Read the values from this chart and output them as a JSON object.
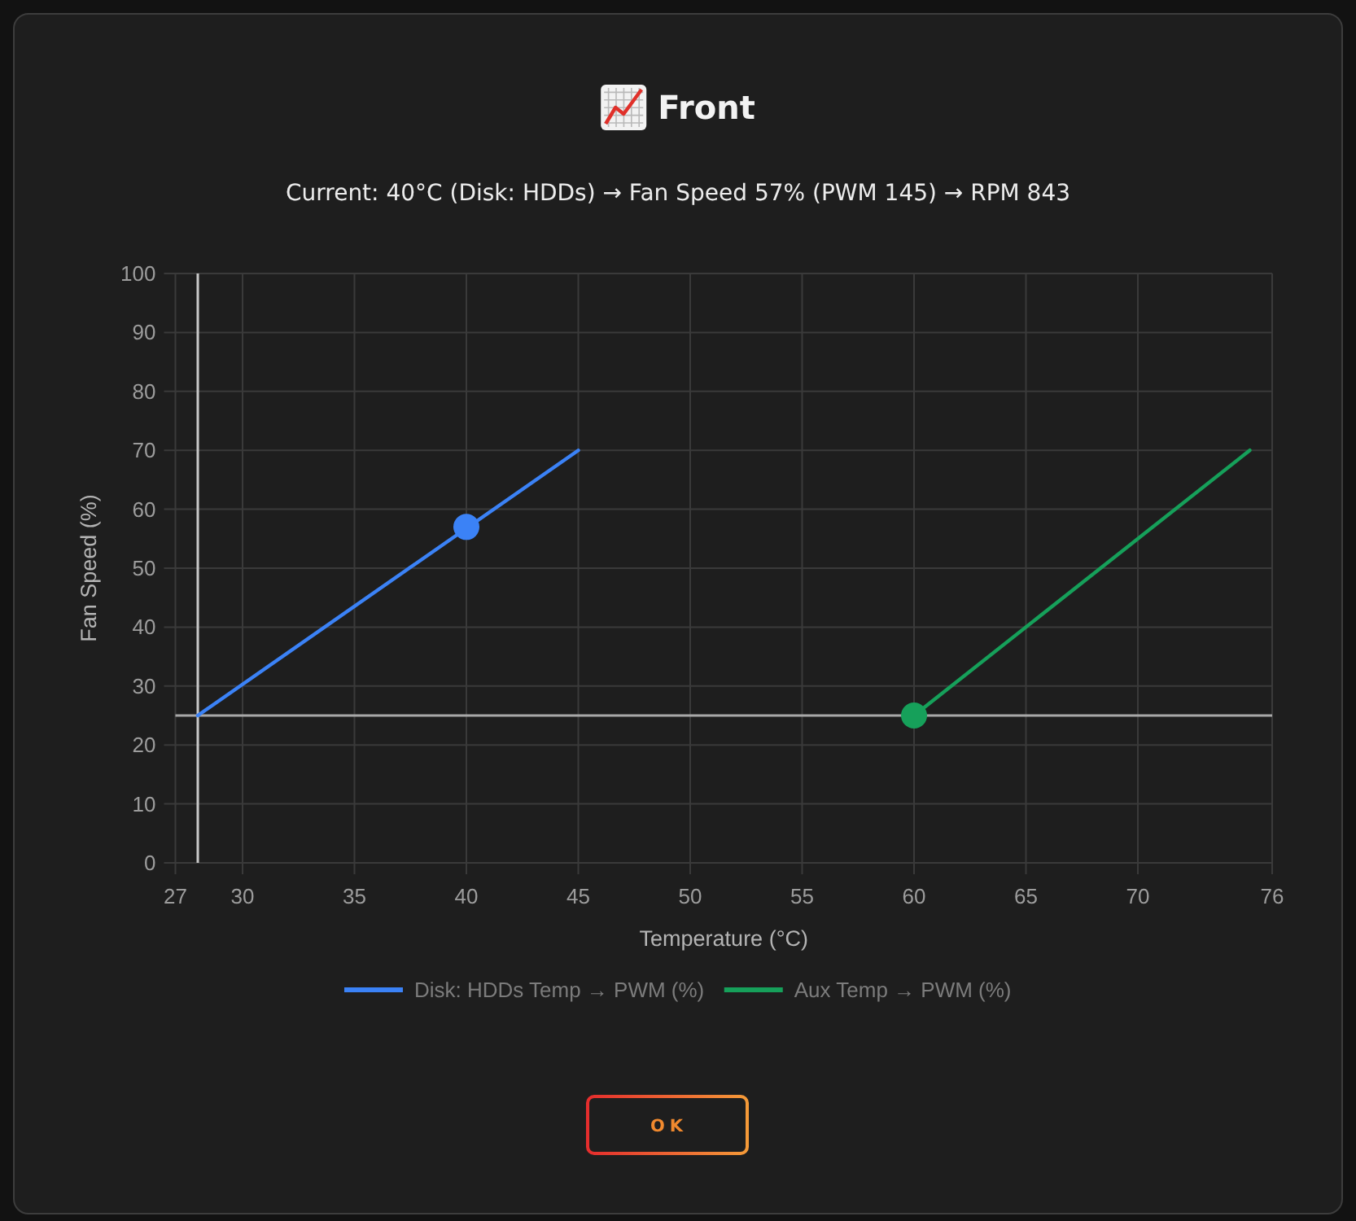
{
  "chart_data": {
    "type": "line",
    "title": "Front",
    "subtitle": "Current: 40°C (Disk: HDDs) → Fan Speed 57% (PWM 145) → RPM 843",
    "xlabel": "Temperature (°C)",
    "ylabel": "Fan Speed (%)",
    "xlim": [
      27,
      76
    ],
    "xticks": [
      27,
      30,
      35,
      40,
      45,
      50,
      55,
      60,
      65,
      70,
      76
    ],
    "ylim": [
      0,
      100
    ],
    "yticks": [
      0,
      10,
      20,
      30,
      40,
      50,
      60,
      70,
      80,
      90,
      100
    ],
    "series": [
      {
        "name": "Disk: HDDs Temp → PWM (%)",
        "color": "#3b82f6",
        "x": [
          28,
          45
        ],
        "values": [
          25,
          70
        ]
      },
      {
        "name": "Aux Temp → PWM (%)",
        "color": "#16a05a",
        "x": [
          60,
          75
        ],
        "values": [
          25,
          70
        ]
      },
      {
        "color": "#3b82f6",
        "type": "scatter",
        "marker": "circle",
        "x": [
          40
        ],
        "values": [
          57
        ]
      },
      {
        "color": "#16a05a",
        "type": "scatter",
        "marker": "circle",
        "x": [
          60
        ],
        "values": [
          25
        ]
      }
    ],
    "ref_lines": [
      {
        "axis": "x",
        "value": 28,
        "color": "#c8c8c8"
      },
      {
        "axis": "y",
        "value": 25,
        "color": "#a8a8a8"
      }
    ],
    "grid": true,
    "legend": "bottom",
    "annotations": [
      "OK"
    ]
  }
}
